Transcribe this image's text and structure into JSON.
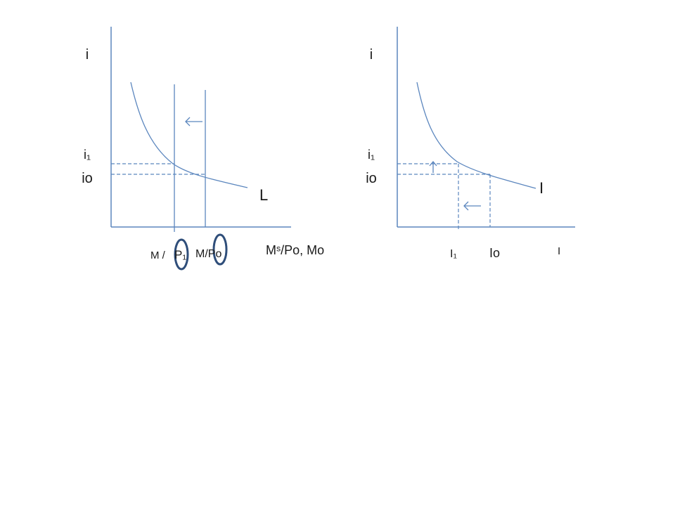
{
  "left_panel": {
    "y_axis_label": "i",
    "i1_label": "i₁",
    "i0_label": "io",
    "curve_label": "L",
    "x_axis_label": "Mˢ/Po, Mo",
    "m_p1_prefix": "M /",
    "m_p1_label": "P₁",
    "m_p0_label": "M/Po"
  },
  "right_panel": {
    "y_axis_label": "i",
    "i1_label": "i₁",
    "i0_label": "io",
    "curve_label": "I",
    "x_axis_label": "I",
    "i1_x_label": "I₁",
    "i0_x_label": "Io"
  },
  "colors": {
    "line": "#5b86be",
    "highlight": "#2f4e7a",
    "text": "#1a1a1a"
  }
}
